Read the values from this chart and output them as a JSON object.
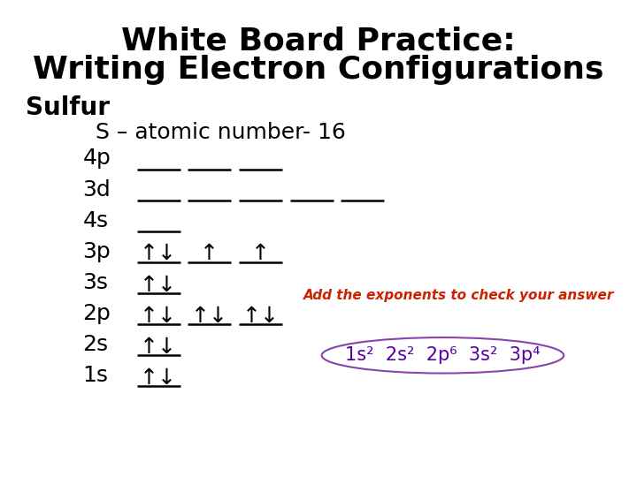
{
  "title_line1": "White Board Practice:",
  "title_line2": "Writing Electron Configurations",
  "bg_color": "#ffffff",
  "title_fontsize": 26,
  "body_fontsize": 18,
  "label_fontsize": 18,
  "sulfur_fontsize": 20,
  "annotation_text": "Add the exponents to check your answer",
  "annotation_color": "#cc2200",
  "annotation_fontsize": 11,
  "electron_config_color": "#5500aa",
  "electron_config_fontsize": 15,
  "ellipse_color": "#8844aa",
  "arrow_up": "↑",
  "arrow_down": "↓",
  "arrow_both": "↑↓"
}
